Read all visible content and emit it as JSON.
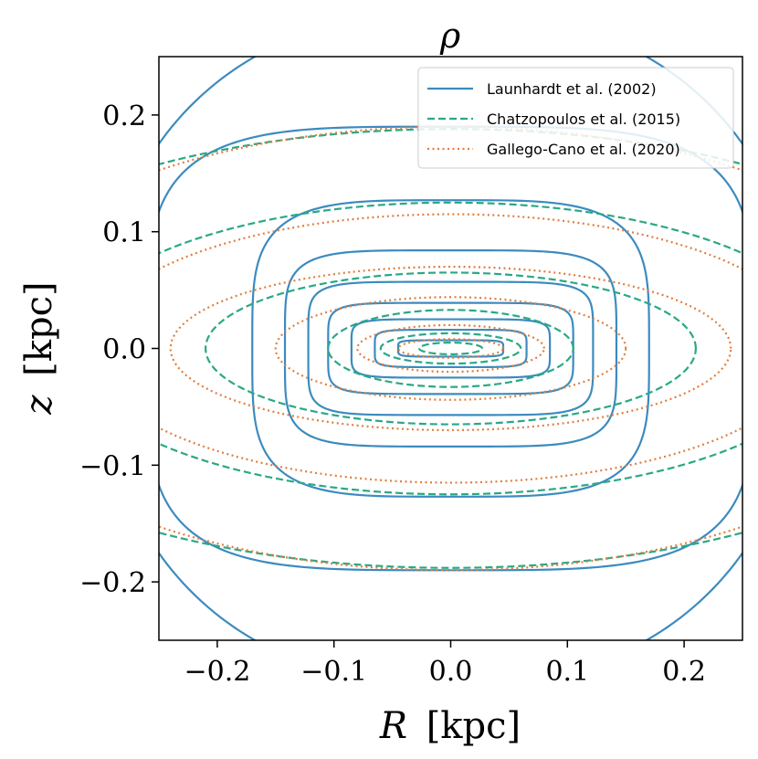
{
  "chart_data": {
    "type": "contour",
    "title": "ρ",
    "xlabel_var": "R",
    "xlabel_unit": "[kpc]",
    "ylabel_var": "z",
    "ylabel_unit": "[kpc]",
    "xlim": [
      -0.25,
      0.25
    ],
    "ylim": [
      -0.25,
      0.25
    ],
    "xticks": [
      -0.2,
      -0.1,
      0.0,
      0.1,
      0.2
    ],
    "xtick_labels": [
      "−0.2",
      "−0.1",
      "0.0",
      "0.1",
      "0.2"
    ],
    "yticks": [
      -0.2,
      -0.1,
      0.0,
      0.1,
      0.2
    ],
    "ytick_labels": [
      "−0.2",
      "−0.1",
      "0.0",
      "0.1",
      "0.2"
    ],
    "legend_position": "top-right",
    "series": [
      {
        "name": "Launhardt et al. (2002)",
        "color": "#3c8bbf",
        "style": "solid",
        "contours": [
          {
            "a": 0.045,
            "b": 0.007,
            "n": 6
          },
          {
            "a": 0.065,
            "b": 0.016,
            "n": 6
          },
          {
            "a": 0.085,
            "b": 0.025,
            "n": 6
          },
          {
            "a": 0.105,
            "b": 0.039,
            "n": 6
          },
          {
            "a": 0.122,
            "b": 0.057,
            "n": 6
          },
          {
            "a": 0.142,
            "b": 0.084,
            "n": 5
          },
          {
            "a": 0.17,
            "b": 0.127,
            "n": 4
          },
          {
            "a": 0.26,
            "b": 0.19,
            "n": 4
          },
          {
            "a": 0.3,
            "b": 0.29,
            "n": 2.2
          }
        ]
      },
      {
        "name": "Chatzopoulos et al. (2015)",
        "color": "#2aa885",
        "style": "dashed",
        "contours": [
          {
            "a": 0.027,
            "b": 0.005,
            "n": 2
          },
          {
            "a": 0.06,
            "b": 0.013,
            "n": 2
          },
          {
            "a": 0.105,
            "b": 0.033,
            "n": 2
          },
          {
            "a": 0.21,
            "b": 0.065,
            "n": 2
          },
          {
            "a": 0.33,
            "b": 0.125,
            "n": 2
          },
          {
            "a": 0.46,
            "b": 0.188,
            "n": 2
          }
        ]
      },
      {
        "name": "Gallego-Cano et al. (2020)",
        "color": "#e07e3c",
        "style": "dotted",
        "contours": [
          {
            "a": 0.045,
            "b": 0.008,
            "n": 2
          },
          {
            "a": 0.08,
            "b": 0.02,
            "n": 2
          },
          {
            "a": 0.15,
            "b": 0.044,
            "n": 2
          },
          {
            "a": 0.24,
            "b": 0.07,
            "n": 2
          },
          {
            "a": 0.31,
            "b": 0.115,
            "n": 2
          },
          {
            "a": 0.42,
            "b": 0.19,
            "n": 2
          }
        ]
      }
    ]
  }
}
